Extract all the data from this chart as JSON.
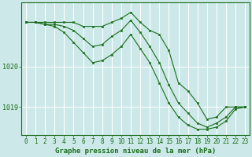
{
  "bg_color": "#cce8e8",
  "grid_color": "#ffffff",
  "line_color": "#1a6e1a",
  "marker_color": "#1a6e1a",
  "xlabel": "Graphe pression niveau de la mer (hPa)",
  "xlabel_fontsize": 6.5,
  "tick_fontsize": 6.0,
  "xlim": [
    -0.5,
    23.5
  ],
  "ylim": [
    1018.3,
    1021.6
  ],
  "yticks": [
    1019,
    1020
  ],
  "xticks": [
    0,
    1,
    2,
    3,
    4,
    5,
    6,
    7,
    8,
    9,
    10,
    11,
    12,
    13,
    14,
    15,
    16,
    17,
    18,
    19,
    20,
    21,
    22,
    23
  ],
  "series": [
    {
      "x": [
        0,
        1,
        2,
        3,
        4,
        5,
        6,
        7,
        8,
        9,
        10,
        11,
        12,
        13,
        14,
        15,
        16,
        17,
        18,
        19,
        20,
        21,
        22,
        23
      ],
      "y": [
        1021.1,
        1021.1,
        1021.1,
        1021.1,
        1021.1,
        1021.1,
        1021.0,
        1021.0,
        1021.0,
        1021.1,
        1021.2,
        1021.35,
        1021.1,
        1020.9,
        1020.8,
        1020.4,
        1019.6,
        1019.4,
        1019.1,
        1018.7,
        1018.75,
        1019.0,
        1019.0,
        1019.0
      ]
    },
    {
      "x": [
        0,
        1,
        2,
        3,
        4,
        5,
        6,
        7,
        8,
        9,
        10,
        11,
        12,
        13,
        14,
        15,
        16,
        17,
        18,
        19,
        20,
        21,
        22,
        23
      ],
      "y": [
        1021.1,
        1021.1,
        1021.05,
        1021.05,
        1021.0,
        1020.9,
        1020.7,
        1020.5,
        1020.55,
        1020.75,
        1020.9,
        1021.15,
        1020.85,
        1020.5,
        1020.1,
        1019.55,
        1019.1,
        1018.85,
        1018.6,
        1018.5,
        1018.6,
        1018.75,
        1019.0,
        1019.0
      ]
    },
    {
      "x": [
        0,
        1,
        2,
        3,
        4,
        5,
        6,
        7,
        8,
        9,
        10,
        11,
        12,
        13,
        14,
        15,
        16,
        17,
        18,
        19,
        20,
        21,
        22,
        23
      ],
      "y": [
        1021.1,
        1021.1,
        1021.05,
        1021.0,
        1020.85,
        1020.6,
        1020.35,
        1020.1,
        1020.15,
        1020.3,
        1020.5,
        1020.8,
        1020.45,
        1020.1,
        1019.6,
        1019.1,
        1018.75,
        1018.55,
        1018.45,
        1018.45,
        1018.5,
        1018.65,
        1018.95,
        1019.0
      ]
    }
  ]
}
